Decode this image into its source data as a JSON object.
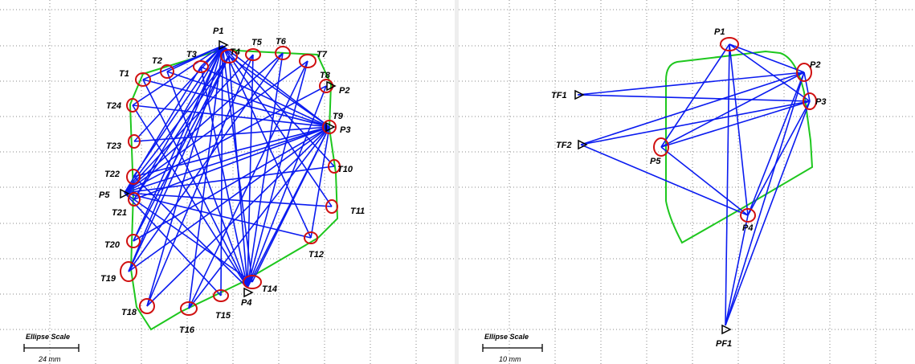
{
  "colors": {
    "ray": "#0a1bf0",
    "boundary": "#1ec71e",
    "ellipse": "#d01010",
    "grid": "#8a8a8a",
    "marker": "#000000"
  },
  "left": {
    "scale_title": "Ellipse Scale",
    "scale_value": "24 mm",
    "stations": [
      {
        "id": "P1",
        "label": "P1"
      },
      {
        "id": "P2",
        "label": "P2"
      },
      {
        "id": "P3",
        "label": "P3"
      },
      {
        "id": "P4",
        "label": "P4"
      },
      {
        "id": "P5",
        "label": "P5"
      }
    ],
    "targets": [
      {
        "id": "T1",
        "label": "T1"
      },
      {
        "id": "T2",
        "label": "T2"
      },
      {
        "id": "T3",
        "label": "T3"
      },
      {
        "id": "T4",
        "label": "T4"
      },
      {
        "id": "T5",
        "label": "T5"
      },
      {
        "id": "T6",
        "label": "T6"
      },
      {
        "id": "T7",
        "label": "T7"
      },
      {
        "id": "T8",
        "label": "T8"
      },
      {
        "id": "T9",
        "label": "T9"
      },
      {
        "id": "T10",
        "label": "T10"
      },
      {
        "id": "T11",
        "label": "T11"
      },
      {
        "id": "T12",
        "label": "T12"
      },
      {
        "id": "T14",
        "label": "T14"
      },
      {
        "id": "T15",
        "label": "T15"
      },
      {
        "id": "T16",
        "label": "T16"
      },
      {
        "id": "T18",
        "label": "T18"
      },
      {
        "id": "T19",
        "label": "T19"
      },
      {
        "id": "T20",
        "label": "T20"
      },
      {
        "id": "T21",
        "label": "T21"
      },
      {
        "id": "T22",
        "label": "T22"
      },
      {
        "id": "T23",
        "label": "T23"
      },
      {
        "id": "T24",
        "label": "T24"
      }
    ]
  },
  "right": {
    "scale_title": "Ellipse Scale",
    "scale_value": "10 mm",
    "stations": [
      {
        "id": "P1",
        "label": "P1"
      },
      {
        "id": "P2",
        "label": "P2"
      },
      {
        "id": "P3",
        "label": "P3"
      },
      {
        "id": "P4",
        "label": "P4"
      },
      {
        "id": "P5",
        "label": "P5"
      },
      {
        "id": "TF1",
        "label": "TF1"
      },
      {
        "id": "TF2",
        "label": "TF2"
      },
      {
        "id": "PF1",
        "label": "PF1"
      }
    ]
  }
}
